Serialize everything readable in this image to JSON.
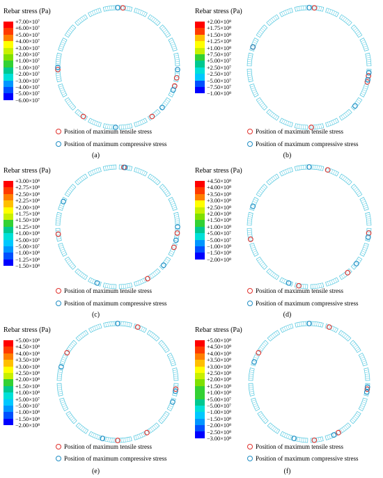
{
  "colors": {
    "scale": [
      "#ff0000",
      "#ff3b00",
      "#ff7f00",
      "#ffbf00",
      "#ffff00",
      "#c8f000",
      "#7fe000",
      "#33d133",
      "#00c890",
      "#00e0d8",
      "#00c8ff",
      "#0096ff",
      "#0050ff",
      "#0000ff"
    ],
    "tensile_marker": "#e0302b",
    "compressive_marker": "#1f8dc4",
    "ring": "#54c8e0"
  },
  "marker_icons": {
    "tensile": "red-circle-icon",
    "compressive": "blue-circle-icon"
  },
  "panels": [
    {
      "legend_title": "Rebar stress (Pa)",
      "ticks": [
        "+7.00×10⁷",
        "+6.00×10⁷",
        "+5.00×10⁷",
        "+4.00×10⁷",
        "+3.00×10⁷",
        "+2.00×10⁷",
        "+1.00×10⁷",
        "−1.00×10⁷",
        "−2.00×10⁷",
        "−3.00×10⁷",
        "−4.00×10⁷",
        "−5.00×10⁷",
        "−6.00×10⁷"
      ],
      "tensile_label": "Position of maximum tensile stress",
      "compressive_label": "Position of maximum compressive stress",
      "caption": "(a)",
      "tensile_positions_deg": [
        5,
        100,
        108,
        145,
        215,
        268
      ],
      "compressive_positions_deg": [
        0,
        92,
        112,
        132,
        182,
        270
      ]
    },
    {
      "legend_title": "Rebar stress (Pa)",
      "ticks": [
        "+2.00×10⁸",
        "+1.75×10⁸",
        "+1.50×10⁸",
        "+1.25×10⁸",
        "+1.00×10⁸",
        "+7.50×10⁷",
        "+5.00×10⁷",
        "+2.50×10⁷",
        "−2.50×10⁷",
        "−5.00×10⁷",
        "−7.50×10⁷",
        "−1.00×10⁸"
      ],
      "tensile_label": "Position of maximum tensile stress",
      "compressive_label": "Position of maximum compressive stress",
      "caption": "(b)",
      "tensile_positions_deg": [
        5,
        98,
        104,
        178,
        290
      ],
      "compressive_positions_deg": [
        0,
        95,
        102,
        130,
        290
      ]
    },
    {
      "legend_title": "Rebar stress (Pa)",
      "ticks": [
        "+3.00×10⁸",
        "+2.75×10⁸",
        "+2.50×10⁸",
        "+2.25×10⁸",
        "+2.00×10⁸",
        "+1.75×10⁸",
        "+1.50×10⁸",
        "+1.25×10⁸",
        "+1.00×10⁸",
        "+5.00×10⁷",
        "−5.00×10⁷",
        "−1.00×10⁸",
        "−1.25×10⁸",
        "−1.50×10⁸"
      ],
      "tensile_label": "Position of maximum tensile stress",
      "compressive_label": "Position of maximum compressive stress",
      "caption": "(c)",
      "tensile_positions_deg": [
        6,
        96,
        110,
        150,
        263
      ],
      "compressive_positions_deg": [
        7,
        90,
        103,
        130,
        200,
        295
      ]
    },
    {
      "legend_title": "Rebar stress (Pa)",
      "ticks": [
        "+4.50×10⁸",
        "+4.00×10⁸",
        "+3.50×10⁸",
        "+3.00×10⁸",
        "+2.50×10⁸",
        "+2.00×10⁸",
        "+1.50×10⁸",
        "+1.00×10⁸",
        "+5.00×10⁷",
        "−5.00×10⁷",
        "−1.00×10⁸",
        "−1.50×10⁸",
        "−2.00×10⁸"
      ],
      "tensile_label": "Position of maximum tensile stress",
      "compressive_label": "Position of maximum compressive stress",
      "caption": "(d)",
      "tensile_positions_deg": [
        18,
        96,
        140,
        190,
        258
      ],
      "compressive_positions_deg": [
        0,
        100,
        128,
        200,
        290
      ]
    },
    {
      "legend_title": "Rebar stress (Pa)",
      "ticks": [
        "+5.00×10⁸",
        "+4.50×10⁸",
        "+4.00×10⁸",
        "+3.50×10⁸",
        "+3.00×10⁸",
        "+2.50×10⁸",
        "+2.00×10⁸",
        "+1.50×10⁸",
        "+1.00×10⁸",
        "+5.00×10⁷",
        "−5.00×10⁷",
        "−1.00×10⁸",
        "−1.50×10⁸",
        "−2.00×10⁸"
      ],
      "tensile_label": "Position of maximum tensile stress",
      "compressive_label": "Position of maximum compressive stress",
      "caption": "(e)",
      "tensile_positions_deg": [
        20,
        97,
        150,
        180,
        300
      ],
      "compressive_positions_deg": [
        0,
        99,
        110,
        195,
        285
      ]
    },
    {
      "legend_title": "Rebar stress (Pa)",
      "ticks": [
        "+5.00×10⁸",
        "+4.50×10⁸",
        "+4.00×10⁸",
        "+3.50×10⁸",
        "+3.00×10⁸",
        "+2.50×10⁸",
        "+2.00×10⁸",
        "+1.50×10⁸",
        "+1.00×10⁸",
        "+5.00×10⁷",
        "−5.00×10⁷",
        "−1.00×10⁸",
        "−1.50×10⁸",
        "−2.00×10⁸",
        "−2.50×10⁸",
        "−3.00×10⁸"
      ],
      "tensile_label": "Position of maximum tensile stress",
      "compressive_label": "Position of maximum compressive stress",
      "caption": "(f)",
      "tensile_positions_deg": [
        20,
        97,
        150,
        175,
        300
      ],
      "compressive_positions_deg": [
        0,
        95,
        100,
        155,
        195,
        290
      ]
    }
  ]
}
